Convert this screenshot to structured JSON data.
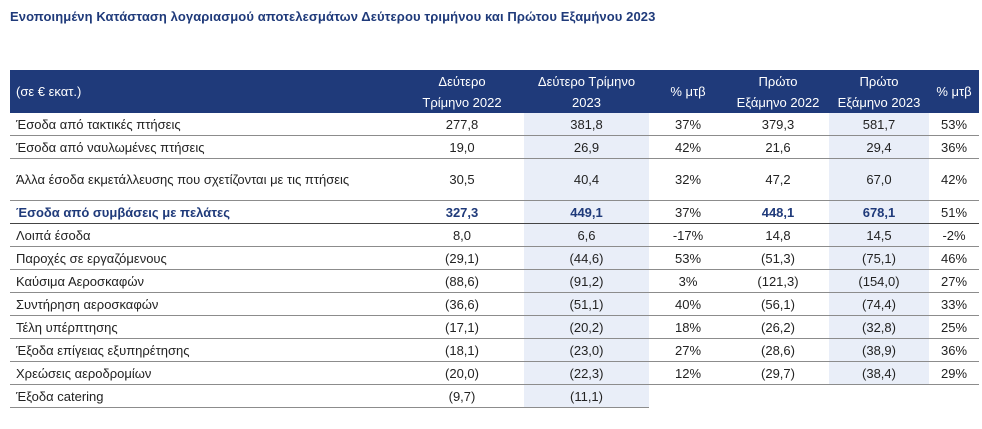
{
  "title": "Ενοποιημένη Κατάσταση λογαριασμού αποτελεσμάτων Δεύτερου τριμήνου και Πρώτου Εξαμήνου 2023",
  "headers": {
    "label": "(σε € εκατ.)",
    "q2_2022": [
      "Δεύτερο",
      "Τρίμηνο 2022"
    ],
    "q2_2023": [
      "Δεύτερο Τρίμηνο",
      "2023"
    ],
    "yoy_q": "% μτβ",
    "h1_2022": [
      "Πρώτο",
      "Εξάμηνο 2022"
    ],
    "h1_2023": [
      "Πρώτο",
      "Εξάμηνο 2023"
    ],
    "yoy_h": "% μτβ"
  },
  "rows": [
    {
      "label": "Έσοδα από τακτικές πτήσεις",
      "q2_2022": "277,8",
      "q2_2023": "381,8",
      "yoy_q": "37%",
      "h1_2022": "379,3",
      "h1_2023": "581,7",
      "yoy_h": "53%"
    },
    {
      "label": "Έσοδα από ναυλωμένες πτήσεις",
      "q2_2022": "19,0",
      "q2_2023": "26,9",
      "yoy_q": "42%",
      "h1_2022": "21,6",
      "h1_2023": "29,4",
      "yoy_h": "36%"
    },
    {
      "label": "Άλλα έσοδα εκμετάλλευσης που σχετίζονται με τις πτήσεις",
      "q2_2022": "30,5",
      "q2_2023": "40,4",
      "yoy_q": "32%",
      "h1_2022": "47,2",
      "h1_2023": "67,0",
      "yoy_h": "42%"
    },
    {
      "label": "Έσοδα από συμβάσεις με πελάτες",
      "q2_2022": "327,3",
      "q2_2023": "449,1",
      "yoy_q": "37%",
      "h1_2022": "448,1",
      "h1_2023": "678,1",
      "yoy_h": "51%"
    },
    {
      "label": "Λοιπά έσοδα",
      "q2_2022": "8,0",
      "q2_2023": "6,6",
      "yoy_q": "-17%",
      "h1_2022": "14,8",
      "h1_2023": "14,5",
      "yoy_h": "-2%"
    },
    {
      "label": "Παροχές σε εργαζόμενους",
      "q2_2022": "(29,1)",
      "q2_2023": "(44,6)",
      "yoy_q": "53%",
      "h1_2022": "(51,3)",
      "h1_2023": "(75,1)",
      "yoy_h": "46%"
    },
    {
      "label": "Καύσιμα Αεροσκαφών",
      "q2_2022": "(88,6)",
      "q2_2023": "(91,2)",
      "yoy_q": "3%",
      "h1_2022": "(121,3)",
      "h1_2023": "(154,0)",
      "yoy_h": "27%"
    },
    {
      "label": "Συντήρηση αεροσκαφών",
      "q2_2022": "(36,6)",
      "q2_2023": "(51,1)",
      "yoy_q": "40%",
      "h1_2022": "(56,1)",
      "h1_2023": "(74,4)",
      "yoy_h": "33%"
    },
    {
      "label": "Τέλη υπέρπτησης",
      "q2_2022": "(17,1)",
      "q2_2023": "(20,2)",
      "yoy_q": "18%",
      "h1_2022": "(26,2)",
      "h1_2023": "(32,8)",
      "yoy_h": "25%"
    },
    {
      "label": "Έξοδα επίγειας εξυπηρέτησης",
      "q2_2022": "(18,1)",
      "q2_2023": "(23,0)",
      "yoy_q": "27%",
      "h1_2022": "(28,6)",
      "h1_2023": "(38,9)",
      "yoy_h": "36%"
    },
    {
      "label": "Χρεώσεις αεροδρομίων",
      "q2_2022": "(20,0)",
      "q2_2023": "(22,3)",
      "yoy_q": "12%",
      "h1_2022": "(29,7)",
      "h1_2023": "(38,4)",
      "yoy_h": "29%"
    },
    {
      "label": "Έξοδα catering",
      "q2_2022": "(9,7)",
      "q2_2023": "(11,1)",
      "yoy_q": "",
      "h1_2022": "",
      "h1_2023": "",
      "yoy_h": ""
    }
  ],
  "colors": {
    "header_bg": "#1f3a7a",
    "title": "#1f3a7a",
    "shaded_col": "#e9eef8"
  }
}
